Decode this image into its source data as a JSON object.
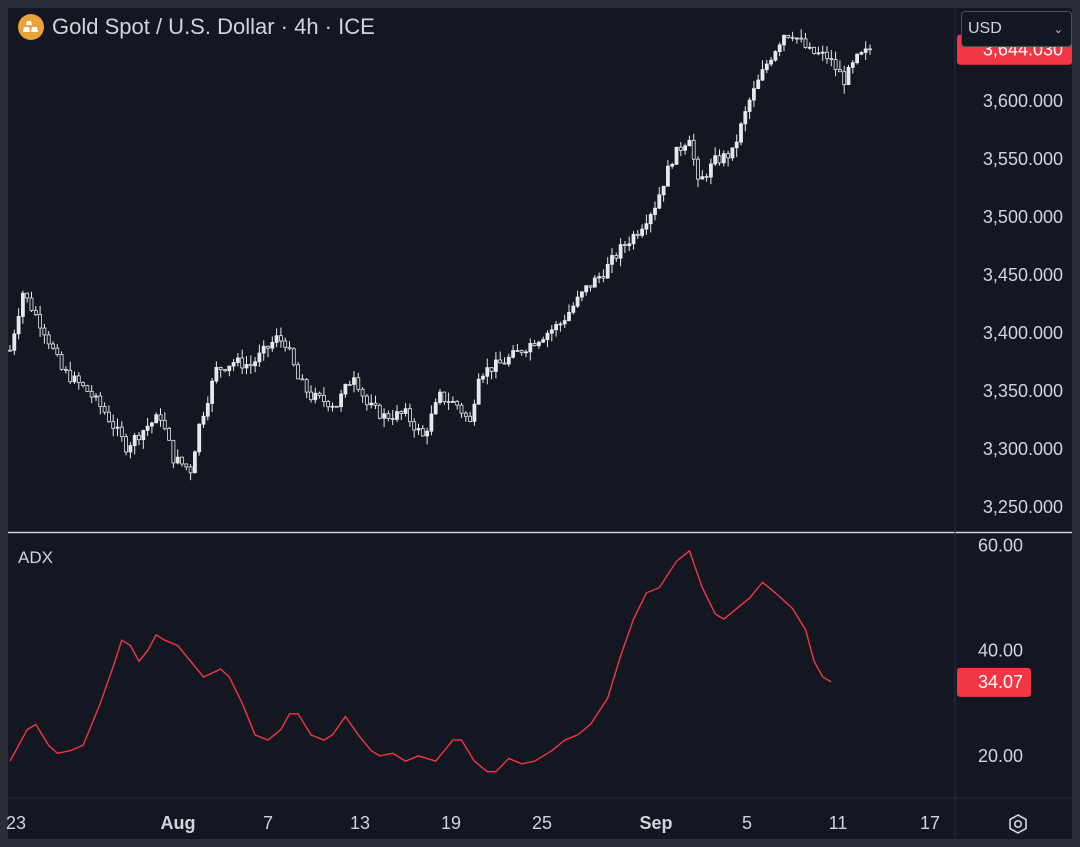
{
  "header": {
    "title": "Gold Spot / U.S. Dollar · 4h · ICE",
    "currency": "USD",
    "logo_icon": "gold-bars-icon"
  },
  "colors": {
    "background": "#131722",
    "candle": "#e6e8ec",
    "adx_line": "#f23645",
    "price_badge": "#f23645",
    "adx_badge": "#f23645",
    "axis_text": "#d1d4dc"
  },
  "chart_data": [
    {
      "type": "candlestick",
      "title": "Gold Spot / U.S. Dollar · 4h · ICE",
      "y_ticks": [
        "3,600.000",
        "3,550.000",
        "3,500.000",
        "3,450.000",
        "3,400.000",
        "3,350.000",
        "3,300.000",
        "3,250.000"
      ],
      "y_tick_values": [
        3600,
        3550,
        3500,
        3450,
        3400,
        3350,
        3300,
        3250
      ],
      "ylim": [
        3230,
        3680
      ],
      "last_price": "3,644.030",
      "last_price_value": 3644.03,
      "x_ticks": [
        "23",
        "Aug",
        "7",
        "13",
        "19",
        "25",
        "Sep",
        "5",
        "11",
        "17"
      ],
      "close_path": [
        [
          0,
          3385
        ],
        [
          3,
          3435
        ],
        [
          8,
          3402
        ],
        [
          12,
          3368
        ],
        [
          18,
          3350
        ],
        [
          22,
          3332
        ],
        [
          27,
          3302
        ],
        [
          32,
          3320
        ],
        [
          35,
          3328
        ],
        [
          38,
          3292
        ],
        [
          42,
          3282
        ],
        [
          44,
          3320
        ],
        [
          48,
          3368
        ],
        [
          52,
          3375
        ],
        [
          56,
          3372
        ],
        [
          62,
          3395
        ],
        [
          64,
          3392
        ],
        [
          67,
          3360
        ],
        [
          70,
          3345
        ],
        [
          76,
          3338
        ],
        [
          80,
          3365
        ],
        [
          83,
          3338
        ],
        [
          87,
          3328
        ],
        [
          92,
          3330
        ],
        [
          96,
          3310
        ],
        [
          100,
          3345
        ],
        [
          104,
          3338
        ],
        [
          107,
          3322
        ],
        [
          109,
          3365
        ],
        [
          115,
          3375
        ],
        [
          120,
          3388
        ],
        [
          128,
          3408
        ],
        [
          134,
          3438
        ],
        [
          138,
          3452
        ],
        [
          142,
          3472
        ],
        [
          146,
          3488
        ],
        [
          150,
          3510
        ],
        [
          154,
          3550
        ],
        [
          158,
          3570
        ],
        [
          160,
          3528
        ],
        [
          164,
          3548
        ],
        [
          168,
          3555
        ],
        [
          172,
          3600
        ],
        [
          176,
          3632
        ],
        [
          180,
          3658
        ],
        [
          182,
          3658
        ],
        [
          186,
          3642
        ],
        [
          190,
          3638
        ],
        [
          194,
          3618
        ],
        [
          197,
          3636
        ],
        [
          200,
          3644
        ]
      ]
    },
    {
      "type": "line",
      "series": [
        {
          "name": "ADX"
        }
      ],
      "y_ticks": [
        "60.00",
        "40.00",
        "20.00"
      ],
      "y_tick_values": [
        60,
        40,
        20
      ],
      "ylim": [
        12,
        62
      ],
      "last_value": "34.07",
      "last_value_num": 34.07,
      "values": [
        [
          0,
          19
        ],
        [
          4,
          25
        ],
        [
          6,
          26
        ],
        [
          9,
          22
        ],
        [
          11,
          20.5
        ],
        [
          14,
          21
        ],
        [
          17,
          22
        ],
        [
          21,
          30
        ],
        [
          24,
          37
        ],
        [
          26,
          42
        ],
        [
          28,
          41
        ],
        [
          30,
          38
        ],
        [
          32,
          40
        ],
        [
          34,
          43
        ],
        [
          36,
          42
        ],
        [
          39,
          41
        ],
        [
          43,
          37
        ],
        [
          45,
          35
        ],
        [
          49,
          36.5
        ],
        [
          51,
          35
        ],
        [
          54,
          30
        ],
        [
          57,
          24
        ],
        [
          60,
          23
        ],
        [
          63,
          25
        ],
        [
          65,
          28
        ],
        [
          67,
          28
        ],
        [
          70,
          24
        ],
        [
          73,
          23
        ],
        [
          75,
          24
        ],
        [
          78,
          27.5
        ],
        [
          81,
          24
        ],
        [
          84,
          21
        ],
        [
          86,
          20
        ],
        [
          89,
          20.5
        ],
        [
          92,
          19
        ],
        [
          95,
          20
        ],
        [
          99,
          19
        ],
        [
          103,
          23
        ],
        [
          105,
          23
        ],
        [
          108,
          19
        ],
        [
          111,
          17
        ],
        [
          113,
          17
        ],
        [
          116,
          19.5
        ],
        [
          119,
          18.5
        ],
        [
          122,
          19
        ],
        [
          126,
          21
        ],
        [
          129,
          23
        ],
        [
          132,
          24
        ],
        [
          135,
          26
        ],
        [
          139,
          31
        ],
        [
          142,
          39
        ],
        [
          145,
          46
        ],
        [
          148,
          51
        ],
        [
          151,
          52
        ],
        [
          155,
          57
        ],
        [
          158,
          59
        ],
        [
          161,
          52
        ],
        [
          164,
          47
        ],
        [
          166,
          46
        ],
        [
          169,
          48
        ],
        [
          172,
          50
        ],
        [
          175,
          53
        ],
        [
          178,
          51
        ],
        [
          182,
          48
        ],
        [
          185,
          44
        ],
        [
          187,
          38
        ],
        [
          189,
          35
        ],
        [
          191,
          34.07
        ]
      ]
    }
  ]
}
